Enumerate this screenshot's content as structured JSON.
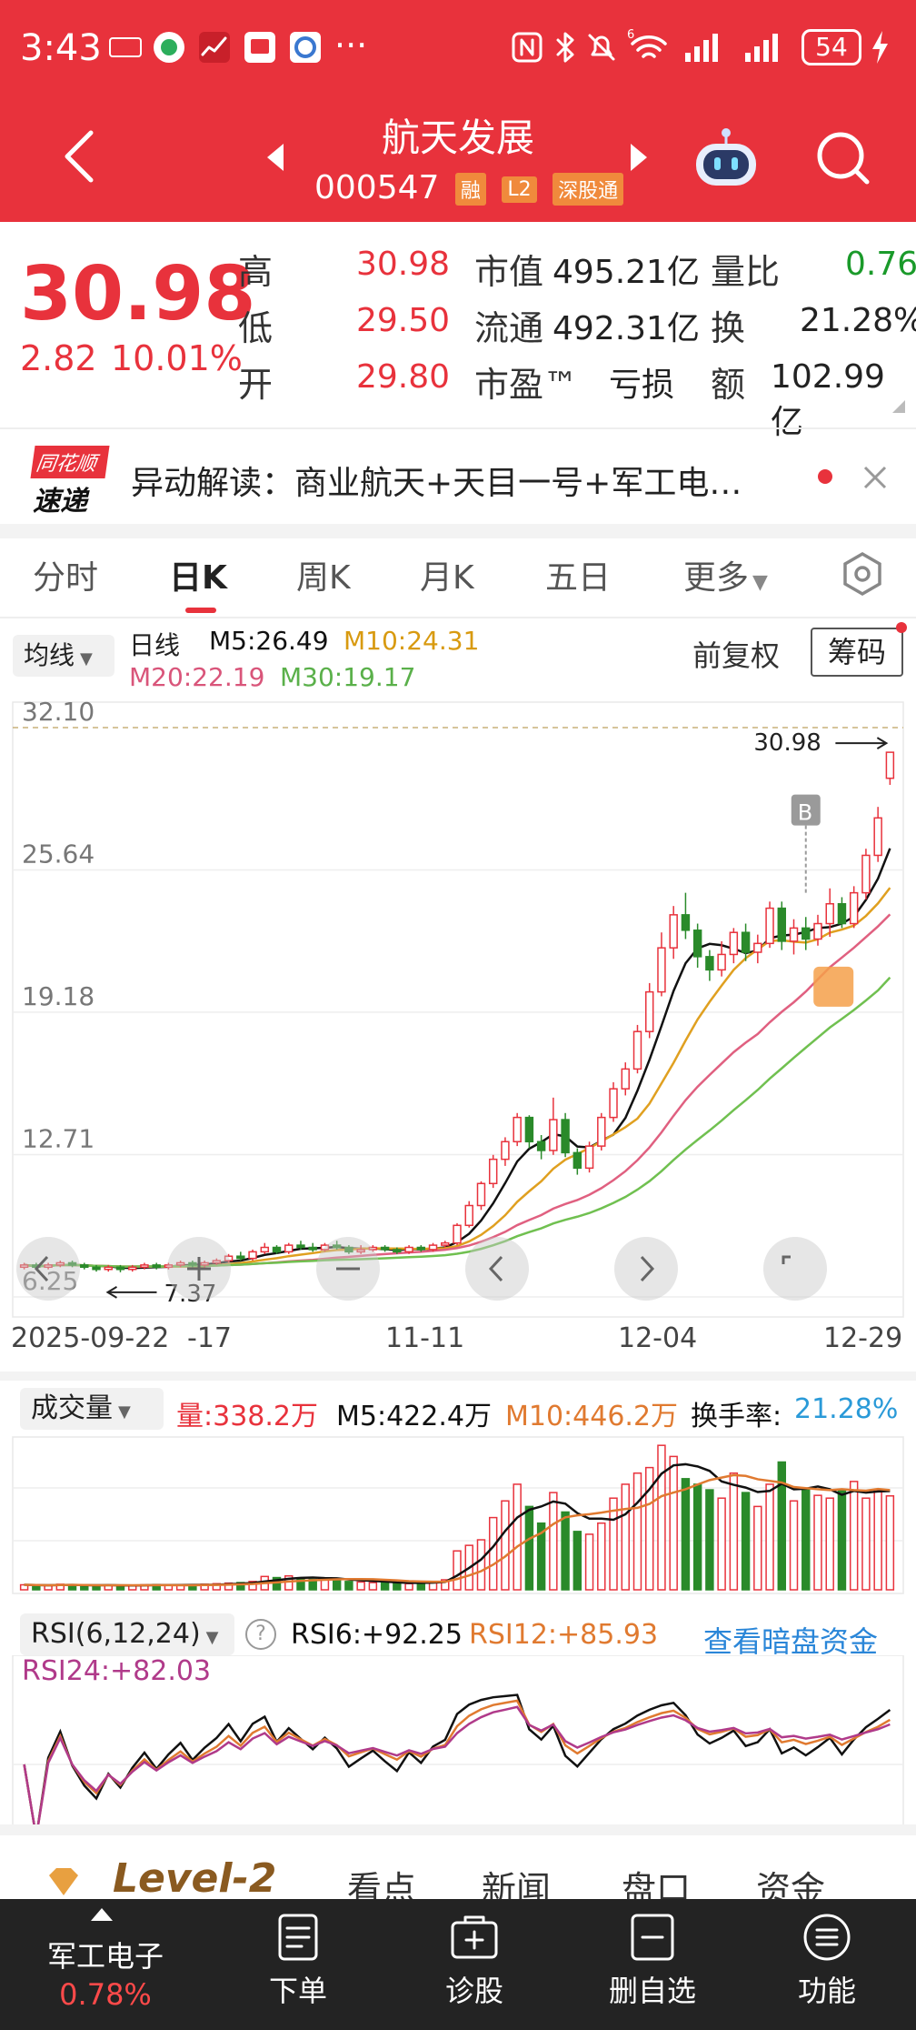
{
  "status_bar": {
    "time": "3:43",
    "ellipsis": "···",
    "network": "6",
    "battery": "54"
  },
  "header": {
    "stock_name": "航天发展",
    "stock_code": "000547",
    "badges": [
      "融",
      "L2",
      "深股通"
    ]
  },
  "quote": {
    "price": "30.98",
    "change": "2.82",
    "change_pct": "10.01%",
    "high_label": "高",
    "high": "30.98",
    "low_label": "低",
    "low": "29.50",
    "open_label": "开",
    "open": "29.80",
    "mktcap_label": "市值",
    "mktcap": "495.21亿",
    "float_label": "流通",
    "float": "492.31亿",
    "pe_label": "市盈™",
    "pe": "亏损",
    "vol_ratio_label": "量比",
    "vol_ratio": "0.76",
    "turnover_label": "换",
    "turnover": "21.28%",
    "amount_label": "额",
    "amount": "102.99亿"
  },
  "news": {
    "logo_line1": "同花顺",
    "logo_line2": "速递",
    "text": "异动解读：商业航天+天目一号+军工电…"
  },
  "tabs": [
    "分时",
    "日K",
    "周K",
    "月K",
    "五日",
    "更多"
  ],
  "chart_header": {
    "indicator_select": "均线",
    "period": "日线",
    "m5": "M5:26.49",
    "m10": "M10:24.31",
    "m20": "M20:22.19",
    "m30": "M30:19.17",
    "adjust": "前复权",
    "chips_button": "筹码"
  },
  "price_axis": [
    "32.10",
    "25.64",
    "19.18",
    "12.71",
    "6.25"
  ],
  "annotations": {
    "high_mark": "30.98",
    "low_mark": "7.37",
    "buy_badge": "B"
  },
  "date_axis": [
    "2025-09-22",
    "-17",
    "11-11",
    "12-04",
    "12-29"
  ],
  "volume_header": {
    "select": "成交量",
    "vol": "量:338.2万",
    "m5": "M5:422.4万",
    "m10": "M10:446.2万",
    "turnover_label": "换手率:",
    "turnover": "21.28%"
  },
  "rsi_header": {
    "select": "RSI(6,12,24)",
    "help": "?",
    "rsi6": "RSI6:+92.25",
    "rsi12": "RSI12:+85.93",
    "rsi24": "RSI24:+82.03",
    "dark_pool_link": "查看暗盘资金"
  },
  "section_tabs": [
    "Level-2",
    "看点",
    "新闻",
    "盘口",
    "资金"
  ],
  "bottom_nav": {
    "sector": "军工电子",
    "sector_change": "0.78%",
    "items": [
      "下单",
      "诊股",
      "删自选",
      "功能"
    ]
  },
  "colors": {
    "brand_red": "#e8323c",
    "down_green": "#2a8a2a",
    "ma5": "#111111",
    "ma10": "#e0a020",
    "ma20": "#e06080",
    "ma30": "#70c050"
  },
  "chart_data": {
    "type": "candlestick",
    "dates": [
      "2025-09-22",
      "-17",
      "11-11",
      "12-04",
      "12-29"
    ],
    "ylim": [
      6.25,
      32.1
    ],
    "y_ticks": [
      32.1,
      25.64,
      19.18,
      12.71,
      6.25
    ],
    "last": {
      "close": 30.98,
      "high": 30.98,
      "low": 29.5,
      "open": 29.8
    },
    "period_low": 7.37,
    "moving_averages": {
      "M5": 26.49,
      "M10": 24.31,
      "M20": 22.19,
      "M30": 19.17
    },
    "candles": [
      [
        7.6,
        7.7,
        7.5,
        7.8
      ],
      [
        7.7,
        7.6,
        7.5,
        7.8
      ],
      [
        7.6,
        7.7,
        7.5,
        7.8
      ],
      [
        7.7,
        7.8,
        7.6,
        7.9
      ],
      [
        7.8,
        7.7,
        7.6,
        7.9
      ],
      [
        7.7,
        7.6,
        7.5,
        7.8
      ],
      [
        7.6,
        7.5,
        7.4,
        7.7
      ],
      [
        7.5,
        7.6,
        7.4,
        7.7
      ],
      [
        7.6,
        7.5,
        7.37,
        7.7
      ],
      [
        7.5,
        7.6,
        7.4,
        7.7
      ],
      [
        7.6,
        7.7,
        7.5,
        7.8
      ],
      [
        7.7,
        7.6,
        7.5,
        7.8
      ],
      [
        7.6,
        7.7,
        7.5,
        7.8
      ],
      [
        7.7,
        7.8,
        7.6,
        7.9
      ],
      [
        7.8,
        7.7,
        7.6,
        7.9
      ],
      [
        7.7,
        7.8,
        7.6,
        7.9
      ],
      [
        7.8,
        7.9,
        7.7,
        8.0
      ],
      [
        7.9,
        8.1,
        7.8,
        8.2
      ],
      [
        8.1,
        8.0,
        7.9,
        8.3
      ],
      [
        8.0,
        8.3,
        7.9,
        8.4
      ],
      [
        8.3,
        8.5,
        8.2,
        8.7
      ],
      [
        8.5,
        8.3,
        8.2,
        8.6
      ],
      [
        8.3,
        8.6,
        8.2,
        8.7
      ],
      [
        8.6,
        8.5,
        8.4,
        8.8
      ],
      [
        8.5,
        8.4,
        8.3,
        8.7
      ],
      [
        8.4,
        8.6,
        8.3,
        8.7
      ],
      [
        8.6,
        8.5,
        8.4,
        8.8
      ],
      [
        8.5,
        8.3,
        8.2,
        8.6
      ],
      [
        8.3,
        8.4,
        8.2,
        8.6
      ],
      [
        8.4,
        8.5,
        8.3,
        8.6
      ],
      [
        8.5,
        8.4,
        8.3,
        8.6
      ],
      [
        8.4,
        8.3,
        8.2,
        8.5
      ],
      [
        8.3,
        8.5,
        8.2,
        8.6
      ],
      [
        8.5,
        8.4,
        8.3,
        8.6
      ],
      [
        8.4,
        8.6,
        8.3,
        8.7
      ],
      [
        8.6,
        8.7,
        8.5,
        8.8
      ],
      [
        8.7,
        9.5,
        8.6,
        9.6
      ],
      [
        9.5,
        10.4,
        9.4,
        10.6
      ],
      [
        10.4,
        11.4,
        10.2,
        11.5
      ],
      [
        11.4,
        12.5,
        11.2,
        12.7
      ],
      [
        12.5,
        13.3,
        12.2,
        13.5
      ],
      [
        13.3,
        14.4,
        13.1,
        14.6
      ],
      [
        14.4,
        13.3,
        13.0,
        14.5
      ],
      [
        13.3,
        12.9,
        12.5,
        13.6
      ],
      [
        12.9,
        14.3,
        12.7,
        15.3
      ],
      [
        14.3,
        12.8,
        12.6,
        14.6
      ],
      [
        12.8,
        12.1,
        11.8,
        13.0
      ],
      [
        12.1,
        13.1,
        11.9,
        13.3
      ],
      [
        13.1,
        14.4,
        12.9,
        14.6
      ],
      [
        14.4,
        15.7,
        14.2,
        16.0
      ],
      [
        15.7,
        16.6,
        15.4,
        16.9
      ],
      [
        16.6,
        18.3,
        16.4,
        18.6
      ],
      [
        18.3,
        20.1,
        18.0,
        20.5
      ],
      [
        20.1,
        22.1,
        19.9,
        22.8
      ],
      [
        22.1,
        23.6,
        21.6,
        24.0
      ],
      [
        23.6,
        22.9,
        22.5,
        24.6
      ],
      [
        22.9,
        21.7,
        21.2,
        23.2
      ],
      [
        21.7,
        21.1,
        20.6,
        22.0
      ],
      [
        21.1,
        21.8,
        20.8,
        22.4
      ],
      [
        21.8,
        22.8,
        21.4,
        23.0
      ],
      [
        22.8,
        21.9,
        21.5,
        23.2
      ],
      [
        21.9,
        22.3,
        21.4,
        22.7
      ],
      [
        22.3,
        23.9,
        22.1,
        24.2
      ],
      [
        23.9,
        22.4,
        22.0,
        24.2
      ],
      [
        22.4,
        23.0,
        21.8,
        23.4
      ],
      [
        23.0,
        22.5,
        22.0,
        23.5
      ],
      [
        22.5,
        23.2,
        22.2,
        23.6
      ],
      [
        23.2,
        24.1,
        22.6,
        24.8
      ],
      [
        24.1,
        23.2,
        23.0,
        24.4
      ],
      [
        23.2,
        24.6,
        23.0,
        24.9
      ],
      [
        24.6,
        26.3,
        24.3,
        26.6
      ],
      [
        26.3,
        28.0,
        26.0,
        28.5
      ],
      [
        29.8,
        30.98,
        29.5,
        30.98
      ]
    ],
    "volume": {
      "series_last": 338.2,
      "M5": 422.4,
      "M10": 446.2,
      "turnover_pct": 21.28,
      "values": [
        18,
        16,
        15,
        20,
        18,
        15,
        14,
        16,
        17,
        15,
        18,
        19,
        16,
        17,
        18,
        20,
        22,
        24,
        26,
        30,
        48,
        44,
        50,
        42,
        38,
        36,
        40,
        30,
        28,
        26,
        25,
        24,
        22,
        28,
        30,
        36,
        140,
        160,
        180,
        260,
        320,
        380,
        300,
        240,
        350,
        280,
        210,
        200,
        240,
        330,
        380,
        420,
        440,
        520,
        480,
        400,
        380,
        360,
        330,
        420,
        350,
        300,
        380,
        460,
        320,
        360,
        340,
        330,
        360,
        390,
        330,
        360,
        338
      ]
    },
    "rsi": {
      "RSI6": 92.25,
      "RSI12": 85.93,
      "RSI24": 82.03
    }
  }
}
